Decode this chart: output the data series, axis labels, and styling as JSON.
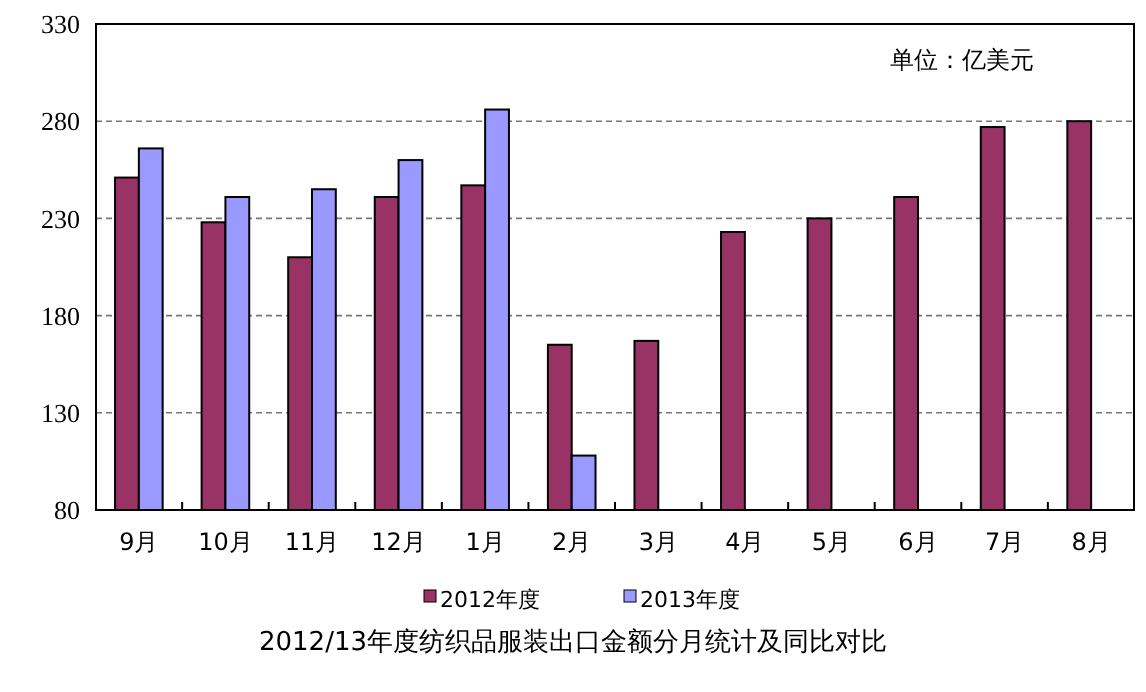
{
  "chart_data": {
    "type": "bar",
    "title": "2012/13年度纺织品服装出口金额分月统计及同比对比",
    "annotations": [
      "单位：亿美元"
    ],
    "categories": [
      "9月",
      "10月",
      "11月",
      "12月",
      "1月",
      "2月",
      "3月",
      "4月",
      "5月",
      "6月",
      "7月",
      "8月"
    ],
    "series": [
      {
        "name": "2012年度",
        "color": "#993366",
        "values": [
          251,
          228,
          210,
          241,
          247,
          165,
          167,
          223,
          230,
          241,
          277,
          280
        ]
      },
      {
        "name": "2013年度",
        "color": "#9999ff",
        "values": [
          266,
          241,
          245,
          260,
          286,
          108,
          null,
          null,
          null,
          null,
          null,
          null
        ]
      }
    ],
    "ylim": [
      80,
      330
    ],
    "yticks": [
      80,
      130,
      180,
      230,
      280,
      330
    ],
    "grid": "y",
    "legend": "bottom"
  }
}
